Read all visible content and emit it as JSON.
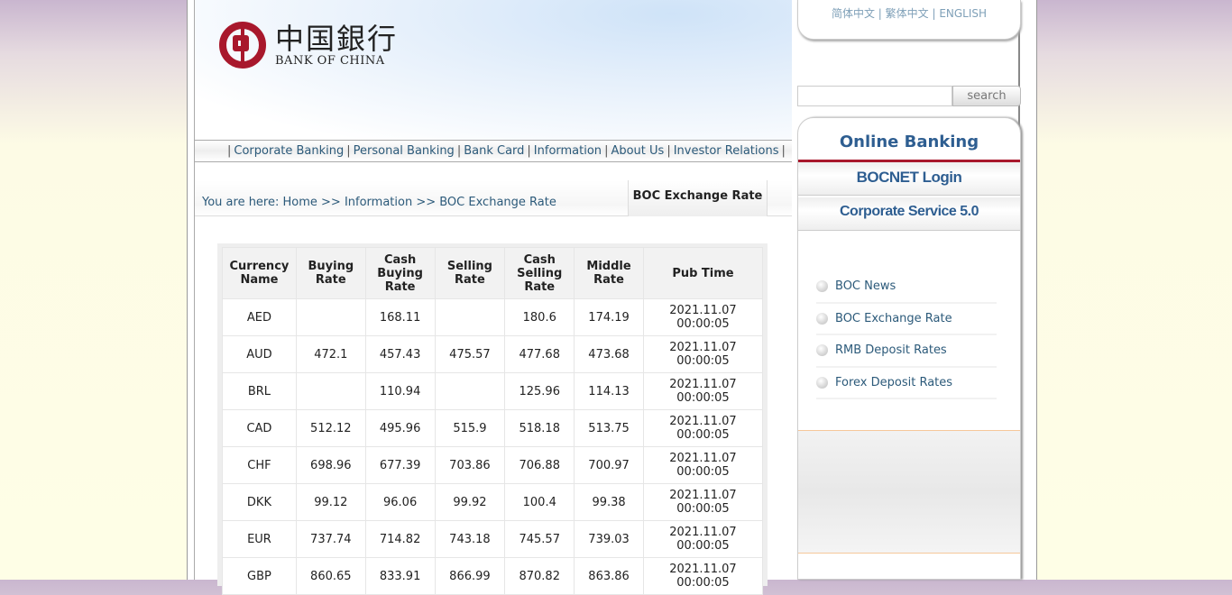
{
  "logo": {
    "cn": "中国銀行",
    "en": "BANK OF CHINA"
  },
  "nav": [
    "Corporate Banking",
    "Personal Banking",
    "Bank Card",
    "Information",
    "About Us",
    "Investor Relations"
  ],
  "breadcrumb": {
    "text": "You are here: Home >> Information >> BOC Exchange Rate",
    "tab": "BOC Exchange Rate"
  },
  "table": {
    "headers": [
      "Currency Name",
      "Buying Rate",
      "Cash Buying Rate",
      "Selling Rate",
      "Cash Selling Rate",
      "Middle Rate",
      "Pub Time"
    ],
    "rows": [
      [
        "AED",
        "",
        "168.11",
        "",
        "180.6",
        "174.19",
        "2021.11.07 00:00:05"
      ],
      [
        "AUD",
        "472.1",
        "457.43",
        "475.57",
        "477.68",
        "473.68",
        "2021.11.07 00:00:05"
      ],
      [
        "BRL",
        "",
        "110.94",
        "",
        "125.96",
        "114.13",
        "2021.11.07 00:00:05"
      ],
      [
        "CAD",
        "512.12",
        "495.96",
        "515.9",
        "518.18",
        "513.75",
        "2021.11.07 00:00:05"
      ],
      [
        "CHF",
        "698.96",
        "677.39",
        "703.86",
        "706.88",
        "700.97",
        "2021.11.07 00:00:05"
      ],
      [
        "DKK",
        "99.12",
        "96.06",
        "99.92",
        "100.4",
        "99.38",
        "2021.11.07 00:00:05"
      ],
      [
        "EUR",
        "737.74",
        "714.82",
        "743.18",
        "745.57",
        "739.03",
        "2021.11.07 00:00:05"
      ],
      [
        "GBP",
        "860.65",
        "833.91",
        "866.99",
        "870.82",
        "863.86",
        "2021.11.07 00:00:05"
      ]
    ]
  },
  "lang": {
    "simplified": "简体中文",
    "traditional": "繁体中文",
    "english": "ENGLISH"
  },
  "search": {
    "value": "",
    "button": "search"
  },
  "online_banking": {
    "title": "Online Banking",
    "bocnet": "BOCNET Login",
    "corporate": "Corporate Service 5.0"
  },
  "links": [
    "BOC News",
    "BOC Exchange Rate",
    "RMB Deposit Rates",
    "Forex Deposit Rates"
  ]
}
